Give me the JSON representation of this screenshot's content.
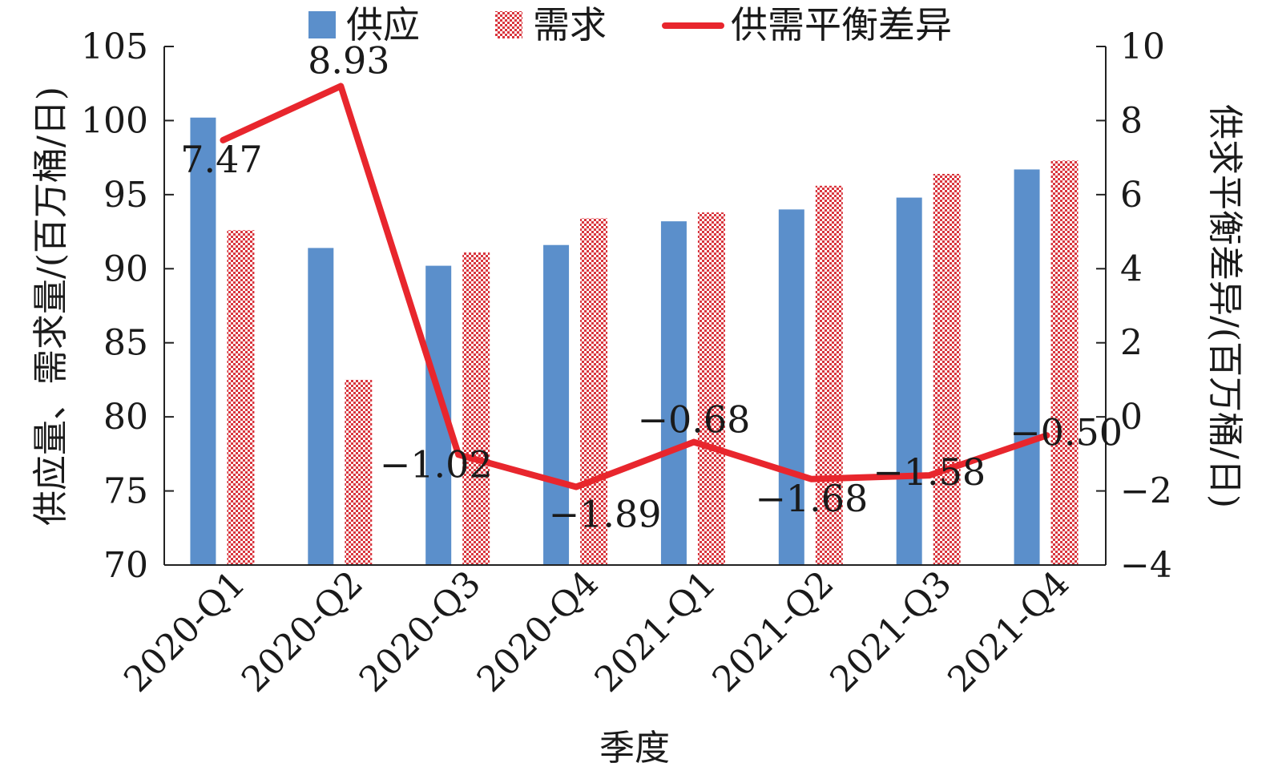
{
  "chart_data": {
    "type": "bar",
    "categories": [
      "2020-Q1",
      "2020-Q2",
      "2020-Q3",
      "2020-Q4",
      "2021-Q1",
      "2021-Q2",
      "2021-Q3",
      "2021-Q4"
    ],
    "series": [
      {
        "name": "供应",
        "type": "bar",
        "axis": "left",
        "color": "#5b8fcb",
        "values": [
          100.2,
          91.4,
          90.2,
          91.6,
          93.2,
          94.0,
          94.8,
          96.7
        ]
      },
      {
        "name": "需求",
        "type": "bar",
        "axis": "left",
        "color": "#d9363e",
        "pattern": "checker",
        "values": [
          92.6,
          82.5,
          91.1,
          93.4,
          93.8,
          95.6,
          96.4,
          97.3
        ]
      },
      {
        "name": "供需平衡差异",
        "type": "line",
        "axis": "right",
        "color": "#e8262d",
        "values": [
          7.47,
          8.93,
          -1.02,
          -1.89,
          -0.68,
          -1.68,
          -1.58,
          -0.5
        ],
        "labels": [
          "7.47",
          "8.93",
          "−1.02",
          "−1.89",
          "−0.68",
          "−1.68",
          "−1.58",
          "−0.50"
        ]
      }
    ],
    "xlabel": "季度",
    "ylabel_left": "供应量、需求量/(百万桶/日)",
    "ylabel_right": "供求平衡差异/(百万桶/日)",
    "ylim_left": [
      70,
      105
    ],
    "yticks_left": [
      70,
      75,
      80,
      85,
      90,
      95,
      100,
      105
    ],
    "ylim_right": [
      -4,
      10
    ],
    "yticks_right": [
      -4,
      -2,
      0,
      2,
      4,
      6,
      8,
      10
    ],
    "ytick_labels_right": [
      "−4",
      "−2",
      "0",
      "2",
      "4",
      "6",
      "8",
      "10"
    ],
    "grid": false,
    "legend_position": "top"
  }
}
